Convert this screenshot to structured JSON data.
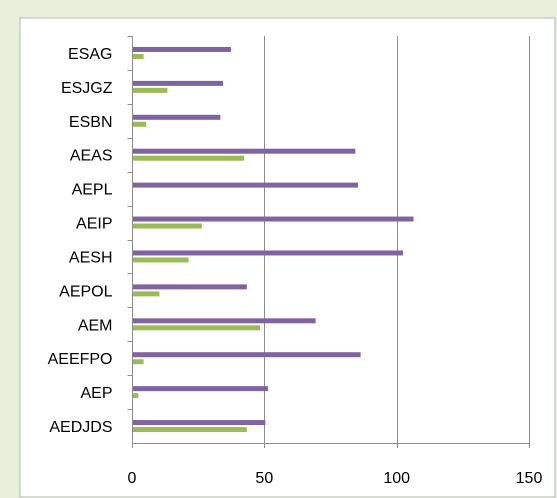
{
  "chart_data": {
    "type": "bar",
    "orientation": "horizontal",
    "categories": [
      "ESAG",
      "ESJGZ",
      "ESBN",
      "AEAS",
      "AEPL",
      "AEIP",
      "AESH",
      "AEPOL",
      "AEM",
      "AEEFPO",
      "AEP",
      "AEDJDS"
    ],
    "series": [
      {
        "color": "#8064a2",
        "values": [
          37,
          34,
          33,
          84,
          85,
          106,
          102,
          43,
          69,
          86,
          51,
          50
        ]
      },
      {
        "color": "#9bbb59",
        "values": [
          4,
          13,
          5,
          42,
          0,
          26,
          21,
          10,
          48,
          4,
          2,
          43
        ]
      }
    ],
    "x_ticks": [
      0,
      50,
      100,
      150
    ],
    "xlim": [
      0,
      150
    ],
    "grid": true,
    "legend": "none"
  },
  "colors": {
    "background": "#e8f0dc",
    "plot_background": "#ffffff"
  }
}
